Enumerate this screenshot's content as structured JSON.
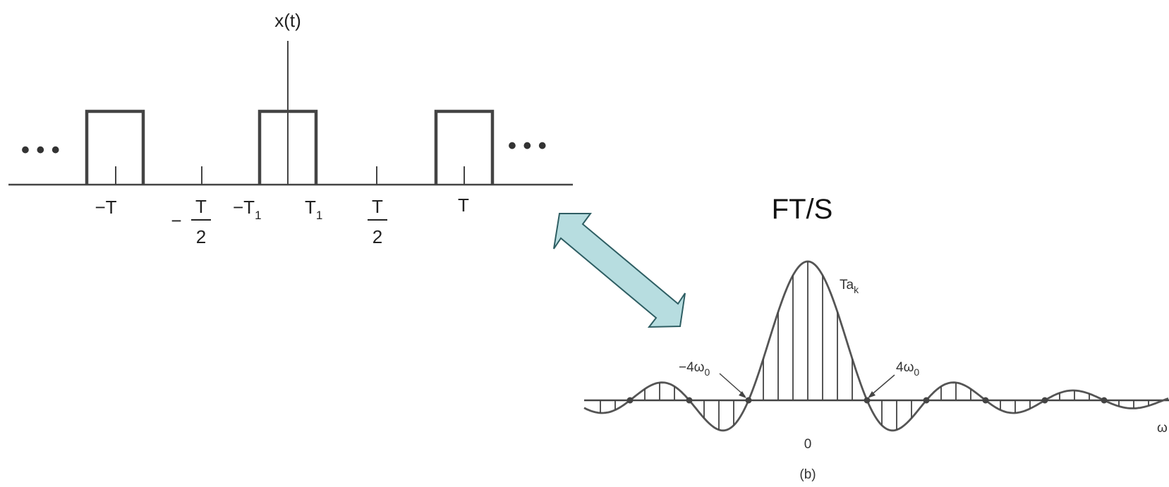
{
  "top_plot": {
    "signal_label": "x(t)",
    "ellipsis_left": "• • •",
    "ellipsis_right": "• • •",
    "ticks": {
      "minus_T": "−T",
      "minus_half_sign": "−",
      "minus_half_num": "T",
      "minus_half_den": "2",
      "minus_T1_main": "−T",
      "minus_T1_sub": "1",
      "T1_main": "T",
      "T1_sub": "1",
      "half_num": "T",
      "half_den": "2",
      "T": "T"
    }
  },
  "relation_label": "FT/S",
  "bottom_plot": {
    "envelope_main": "Ta",
    "envelope_sub": "k",
    "neg4_main": "−4ω",
    "neg4_sub": "0",
    "pos4_main": "4ω",
    "pos4_sub": "0",
    "origin": "0",
    "axis_var": "ω",
    "caption": "(b)"
  },
  "colors": {
    "arrow_fill": "#b7dde0",
    "arrow_stroke": "#2e5e63",
    "ink": "#444444"
  }
}
